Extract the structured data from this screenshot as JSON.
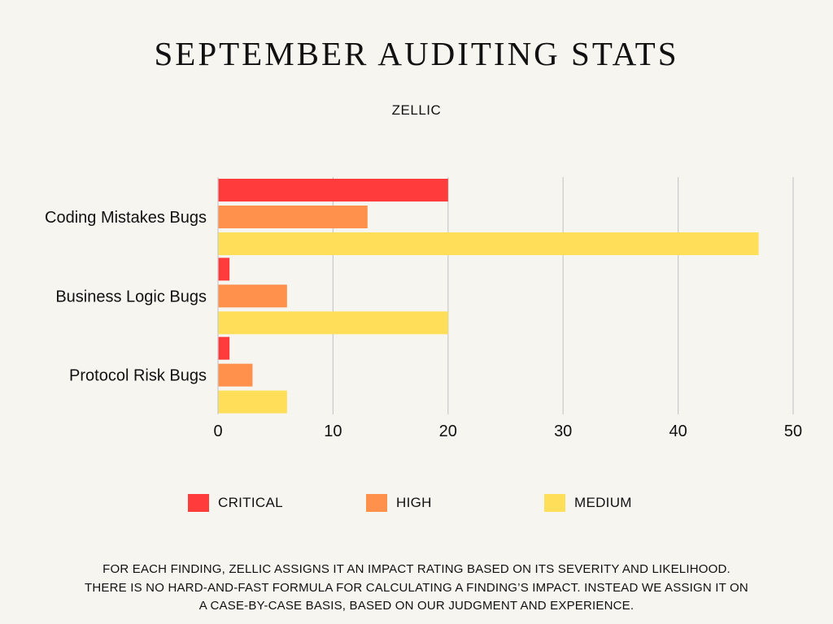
{
  "chart_data": {
    "type": "bar",
    "orientation": "horizontal",
    "title": "SEPTEMBER AUDITING STATS",
    "subtitle": "ZELLIC",
    "categories": [
      "Coding Mistakes Bugs",
      "Business Logic Bugs",
      "Protocol Risk Bugs"
    ],
    "series": [
      {
        "name": "CRITICAL",
        "color": "#ff3b3b",
        "values": [
          20,
          1,
          1
        ]
      },
      {
        "name": "HIGH",
        "color": "#ff914d",
        "values": [
          13,
          6,
          3
        ]
      },
      {
        "name": "MEDIUM",
        "color": "#ffde59",
        "values": [
          47,
          20,
          6
        ]
      }
    ],
    "xlim": [
      0,
      50
    ],
    "xticks": [
      0,
      10,
      20,
      30,
      40,
      50
    ],
    "xlabel": "",
    "ylabel": "",
    "grid": "vertical",
    "legend_position": "bottom"
  },
  "footnote": "FOR EACH FINDING, ZELLIC ASSIGNS IT AN IMPACT RATING BASED ON ITS SEVERITY AND LIKELIHOOD. THERE IS NO HARD-AND-FAST FORMULA FOR CALCULATING A FINDING’S IMPACT. INSTEAD WE ASSIGN IT ON A CASE-BY-CASE BASIS, BASED ON OUR JUDGMENT AND EXPERIENCE."
}
